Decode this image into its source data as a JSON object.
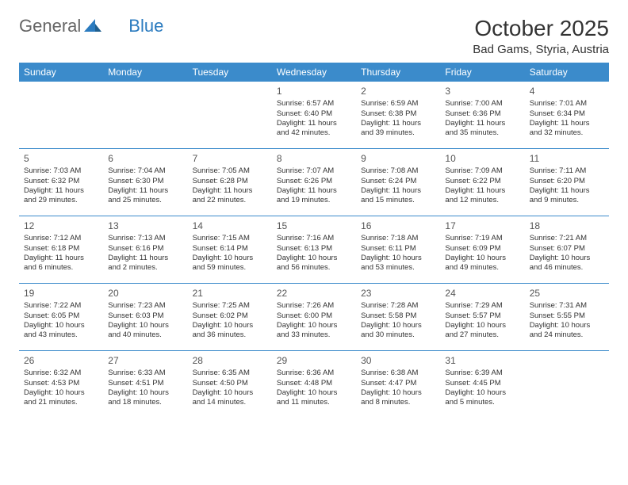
{
  "logo": {
    "text1": "General",
    "text2": "Blue"
  },
  "title": "October 2025",
  "location": "Bad Gams, Styria, Austria",
  "header_bg": "#3B8BCB",
  "divider_color": "#3B8BCB",
  "weekdays": [
    "Sunday",
    "Monday",
    "Tuesday",
    "Wednesday",
    "Thursday",
    "Friday",
    "Saturday"
  ],
  "weeks": [
    [
      null,
      null,
      null,
      {
        "n": "1",
        "sr": "6:57 AM",
        "ss": "6:40 PM",
        "dl": "11 hours and 42 minutes."
      },
      {
        "n": "2",
        "sr": "6:59 AM",
        "ss": "6:38 PM",
        "dl": "11 hours and 39 minutes."
      },
      {
        "n": "3",
        "sr": "7:00 AM",
        "ss": "6:36 PM",
        "dl": "11 hours and 35 minutes."
      },
      {
        "n": "4",
        "sr": "7:01 AM",
        "ss": "6:34 PM",
        "dl": "11 hours and 32 minutes."
      }
    ],
    [
      {
        "n": "5",
        "sr": "7:03 AM",
        "ss": "6:32 PM",
        "dl": "11 hours and 29 minutes."
      },
      {
        "n": "6",
        "sr": "7:04 AM",
        "ss": "6:30 PM",
        "dl": "11 hours and 25 minutes."
      },
      {
        "n": "7",
        "sr": "7:05 AM",
        "ss": "6:28 PM",
        "dl": "11 hours and 22 minutes."
      },
      {
        "n": "8",
        "sr": "7:07 AM",
        "ss": "6:26 PM",
        "dl": "11 hours and 19 minutes."
      },
      {
        "n": "9",
        "sr": "7:08 AM",
        "ss": "6:24 PM",
        "dl": "11 hours and 15 minutes."
      },
      {
        "n": "10",
        "sr": "7:09 AM",
        "ss": "6:22 PM",
        "dl": "11 hours and 12 minutes."
      },
      {
        "n": "11",
        "sr": "7:11 AM",
        "ss": "6:20 PM",
        "dl": "11 hours and 9 minutes."
      }
    ],
    [
      {
        "n": "12",
        "sr": "7:12 AM",
        "ss": "6:18 PM",
        "dl": "11 hours and 6 minutes."
      },
      {
        "n": "13",
        "sr": "7:13 AM",
        "ss": "6:16 PM",
        "dl": "11 hours and 2 minutes."
      },
      {
        "n": "14",
        "sr": "7:15 AM",
        "ss": "6:14 PM",
        "dl": "10 hours and 59 minutes."
      },
      {
        "n": "15",
        "sr": "7:16 AM",
        "ss": "6:13 PM",
        "dl": "10 hours and 56 minutes."
      },
      {
        "n": "16",
        "sr": "7:18 AM",
        "ss": "6:11 PM",
        "dl": "10 hours and 53 minutes."
      },
      {
        "n": "17",
        "sr": "7:19 AM",
        "ss": "6:09 PM",
        "dl": "10 hours and 49 minutes."
      },
      {
        "n": "18",
        "sr": "7:21 AM",
        "ss": "6:07 PM",
        "dl": "10 hours and 46 minutes."
      }
    ],
    [
      {
        "n": "19",
        "sr": "7:22 AM",
        "ss": "6:05 PM",
        "dl": "10 hours and 43 minutes."
      },
      {
        "n": "20",
        "sr": "7:23 AM",
        "ss": "6:03 PM",
        "dl": "10 hours and 40 minutes."
      },
      {
        "n": "21",
        "sr": "7:25 AM",
        "ss": "6:02 PM",
        "dl": "10 hours and 36 minutes."
      },
      {
        "n": "22",
        "sr": "7:26 AM",
        "ss": "6:00 PM",
        "dl": "10 hours and 33 minutes."
      },
      {
        "n": "23",
        "sr": "7:28 AM",
        "ss": "5:58 PM",
        "dl": "10 hours and 30 minutes."
      },
      {
        "n": "24",
        "sr": "7:29 AM",
        "ss": "5:57 PM",
        "dl": "10 hours and 27 minutes."
      },
      {
        "n": "25",
        "sr": "7:31 AM",
        "ss": "5:55 PM",
        "dl": "10 hours and 24 minutes."
      }
    ],
    [
      {
        "n": "26",
        "sr": "6:32 AM",
        "ss": "4:53 PM",
        "dl": "10 hours and 21 minutes."
      },
      {
        "n": "27",
        "sr": "6:33 AM",
        "ss": "4:51 PM",
        "dl": "10 hours and 18 minutes."
      },
      {
        "n": "28",
        "sr": "6:35 AM",
        "ss": "4:50 PM",
        "dl": "10 hours and 14 minutes."
      },
      {
        "n": "29",
        "sr": "6:36 AM",
        "ss": "4:48 PM",
        "dl": "10 hours and 11 minutes."
      },
      {
        "n": "30",
        "sr": "6:38 AM",
        "ss": "4:47 PM",
        "dl": "10 hours and 8 minutes."
      },
      {
        "n": "31",
        "sr": "6:39 AM",
        "ss": "4:45 PM",
        "dl": "10 hours and 5 minutes."
      },
      null
    ]
  ],
  "labels": {
    "sunrise": "Sunrise:",
    "sunset": "Sunset:",
    "daylight": "Daylight:"
  }
}
